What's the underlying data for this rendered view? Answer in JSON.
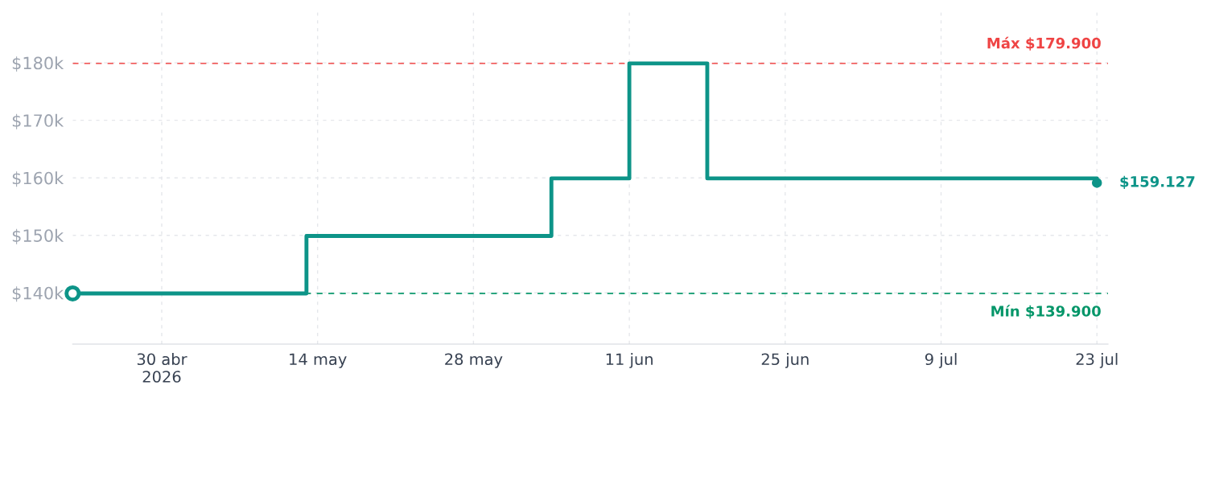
{
  "chart_data": {
    "type": "step",
    "x": [
      "2026-04-22",
      "2026-05-13",
      "2026-06-04",
      "2026-06-11",
      "2026-06-18",
      "2026-07-23"
    ],
    "series": [
      {
        "color": "#0d9488",
        "values": [
          139900,
          149900,
          159900,
          179900,
          159900,
          159127
        ]
      }
    ],
    "xlim": [
      "2026-04-22",
      "2026-07-24"
    ],
    "xticks": [
      {
        "value": "2026-04-30",
        "label": "30 abr\n2026"
      },
      {
        "value": "2026-05-14",
        "label": "14 may"
      },
      {
        "value": "2026-05-28",
        "label": "28 may"
      },
      {
        "value": "2026-06-11",
        "label": "11 jun"
      },
      {
        "value": "2026-06-25",
        "label": "25 jun"
      },
      {
        "value": "2026-07-09",
        "label": "9 jul"
      },
      {
        "value": "2026-07-23",
        "label": "23 jul"
      }
    ],
    "ylim": [
      131100,
      188800
    ],
    "yticks": [
      {
        "value": 140000,
        "label": "$140k"
      },
      {
        "value": 150000,
        "label": "$150k"
      },
      {
        "value": 160000,
        "label": "$160k"
      },
      {
        "value": 170000,
        "label": "$170k"
      },
      {
        "value": 180000,
        "label": "$180k"
      }
    ],
    "ref_lines": [
      {
        "axis": "y",
        "value": 179900,
        "label": "Máx $179.900",
        "color": "#ef4444",
        "line_style": "dashed"
      },
      {
        "axis": "y",
        "value": 139900,
        "label": "Mín $139.900",
        "color": "#059669",
        "line_style": "dashed"
      }
    ],
    "annotations": [
      {
        "text": "$159.127",
        "x": "2026-07-23",
        "y": 159127
      }
    ],
    "grid": true,
    "line_style": "solid"
  }
}
